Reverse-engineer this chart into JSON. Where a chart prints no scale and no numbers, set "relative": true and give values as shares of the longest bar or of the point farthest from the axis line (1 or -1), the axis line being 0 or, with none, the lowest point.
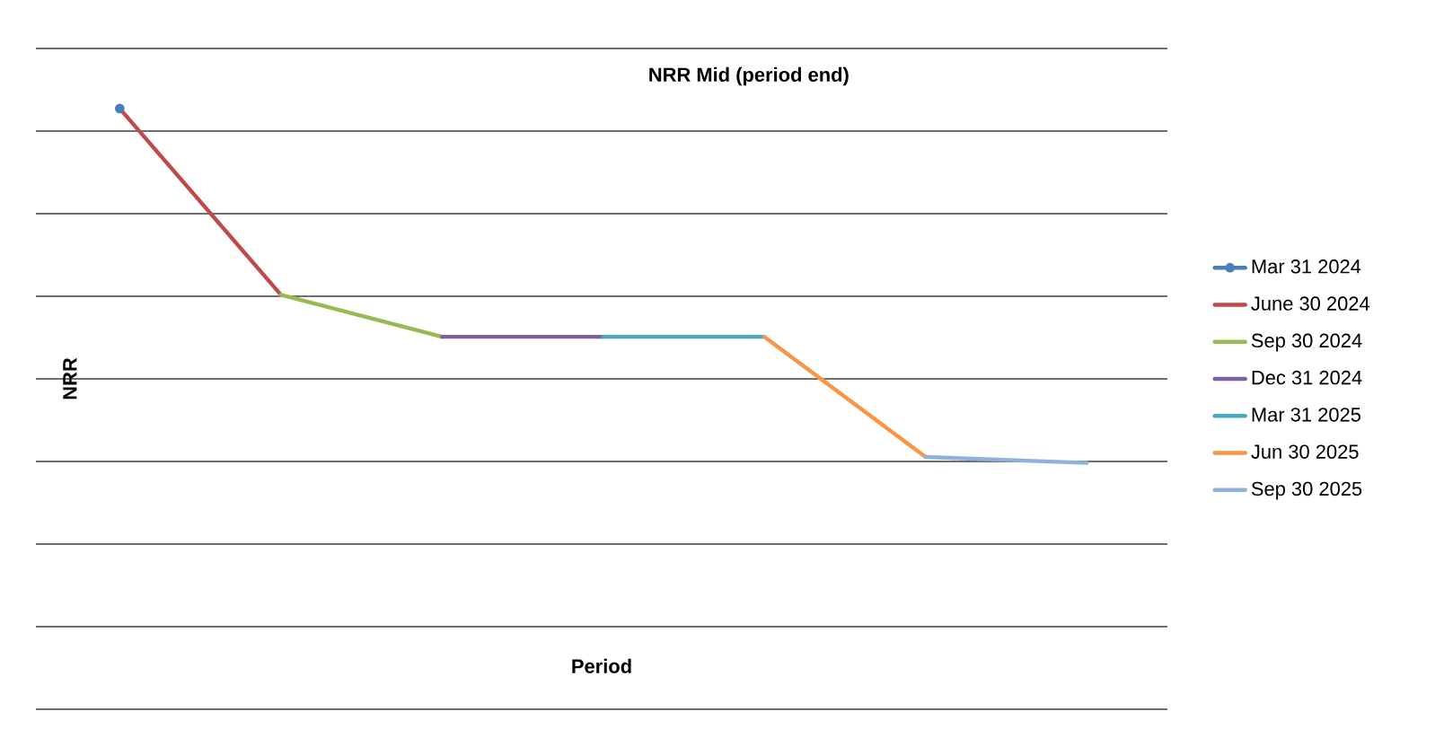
{
  "chart_data": {
    "type": "line",
    "title": "NRR Mid (period end)",
    "xlabel": "Period",
    "ylabel": "NRR",
    "relative": true,
    "grid": "y",
    "legend": "right",
    "line_style": "solid",
    "marker": "none",
    "categories": [
      null,
      null,
      null,
      null,
      null,
      null,
      null
    ],
    "series": [
      {
        "name": "Mar 31 2024",
        "color": "#4a7ebb",
        "values": [
          1,
          null,
          null,
          null,
          null,
          null,
          null
        ]
      },
      {
        "name": "June 30 2024",
        "color": "#be4b48",
        "values": [
          1,
          0.69,
          null,
          null,
          null,
          null,
          null
        ]
      },
      {
        "name": "Sep 30 2024",
        "color": "#98b954",
        "values": [
          null,
          0.69,
          0.62,
          null,
          null,
          null,
          null
        ]
      },
      {
        "name": "Dec 31 2024",
        "color": "#7d60a0",
        "values": [
          null,
          null,
          0.62,
          0.62,
          null,
          null,
          null
        ]
      },
      {
        "name": "Mar 31 2025",
        "color": "#46aac5",
        "values": [
          null,
          null,
          null,
          0.62,
          0.62,
          null,
          null
        ]
      },
      {
        "name": "Jun 30 2025",
        "color": "#f79646",
        "values": [
          null,
          null,
          null,
          null,
          0.62,
          0.42,
          null
        ]
      },
      {
        "name": "Sep 30 2025",
        "color": "#8fb2dc",
        "values": [
          null,
          null,
          null,
          null,
          null,
          0.42,
          0.41
        ]
      }
    ]
  }
}
